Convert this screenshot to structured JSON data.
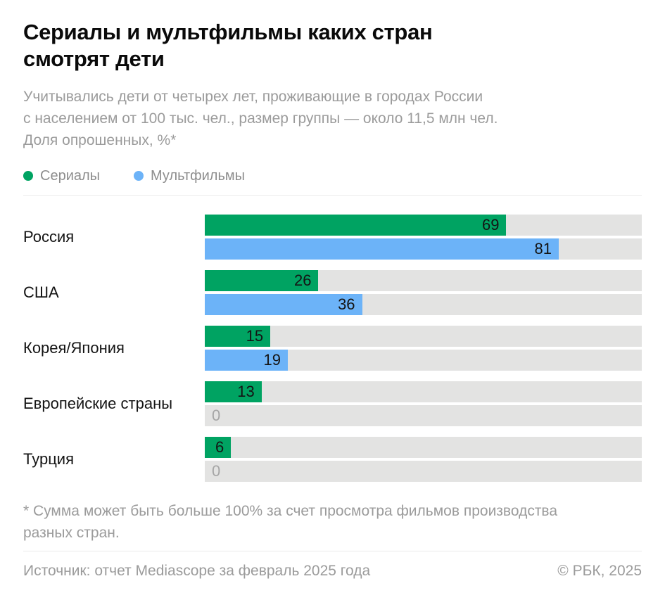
{
  "header": {
    "title_lines": [
      "Сериалы и мультфильмы каких стран",
      "смотрят дети"
    ],
    "subtitle_lines": [
      "Учитывались дети от четырех лет, проживающие в городах России",
      "с населением от 100 тыс. чел., размер группы — около 11,5 млн чел.",
      "Доля опрошенных, %*"
    ]
  },
  "legend": {
    "items": [
      {
        "label": "Сериалы",
        "color": "#00a362"
      },
      {
        "label": "Мультфильмы",
        "color": "#6cb3f8"
      }
    ]
  },
  "chart_data": {
    "type": "bar",
    "orientation": "horizontal",
    "title": "Сериалы и мультфильмы каких стран смотрят дети",
    "subtitle": "Учитывались дети от четырех лет, проживающие в городах России с населением от 100 тыс. чел., размер группы — около 11,5 млн чел. Доля опрошенных, %*",
    "categories": [
      "Россия",
      "США",
      "Корея/Япония",
      "Европейские страны",
      "Турция"
    ],
    "series": [
      {
        "name": "Сериалы",
        "color": "#00a362",
        "values": [
          69,
          26,
          15,
          13,
          6
        ]
      },
      {
        "name": "Мультфильмы",
        "color": "#6cb3f8",
        "values": [
          81,
          36,
          19,
          0,
          0
        ]
      }
    ],
    "xlim": [
      0,
      100
    ],
    "track_color": "#e3e3e2",
    "value_labels": "inside-right",
    "zero_labels": "inside-left-gray",
    "legend_position": "top",
    "grid": false
  },
  "footer": {
    "footnote_lines": [
      "* Сумма может быть больше 100% за счет просмотра фильмов производства",
      "разных стран."
    ],
    "source": "Источник: отчет Mediascope за февраль 2025 года",
    "copyright": "© РБК, 2025"
  }
}
